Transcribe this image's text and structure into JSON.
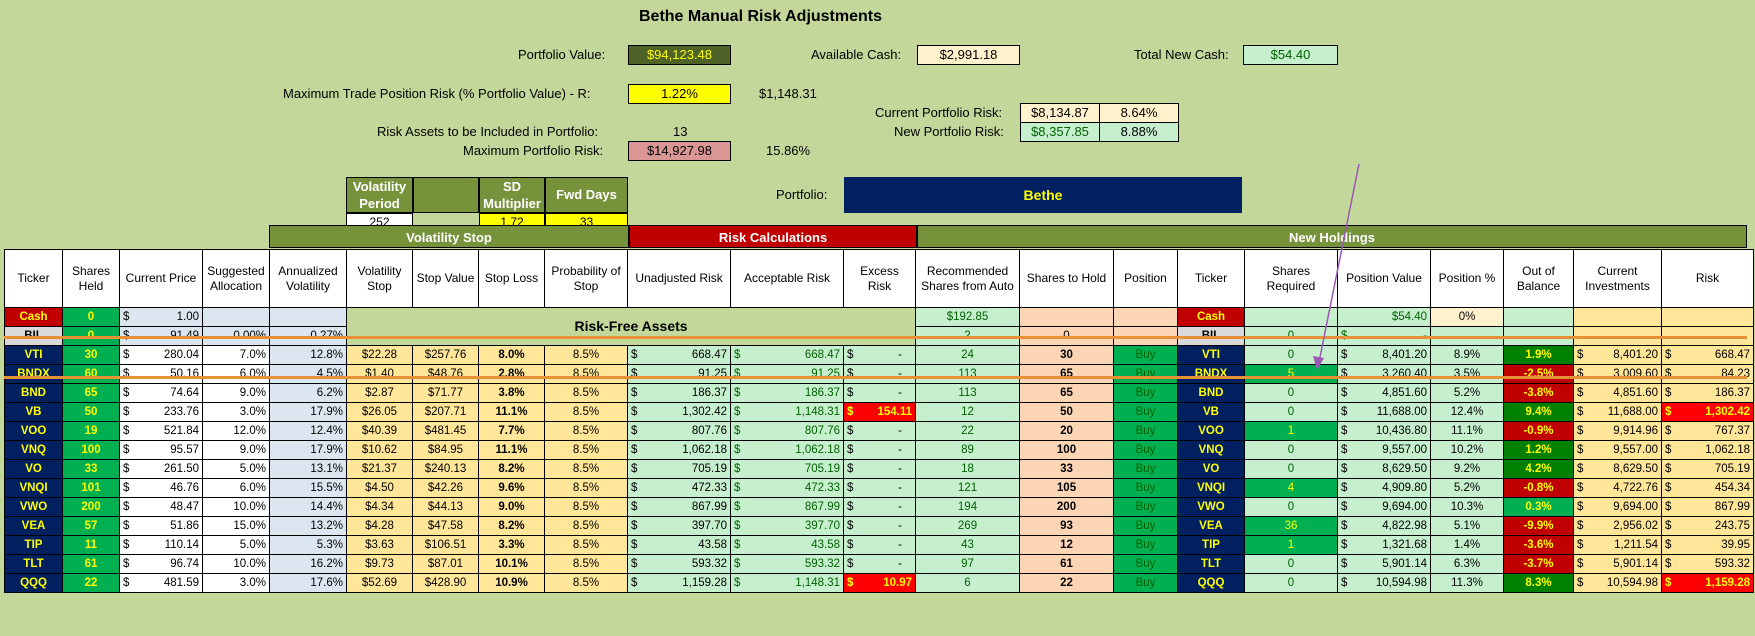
{
  "title": "Bethe Manual Risk Adjustments",
  "summary": {
    "portfolio_value_label": "Portfolio Value:",
    "portfolio_value": "$94,123.48",
    "available_cash_label": "Available Cash:",
    "available_cash": "$2,991.18",
    "total_new_cash_label": "Total New Cash:",
    "total_new_cash": "$54.40",
    "max_trade_risk_label": "Maximum Trade Position Risk (% Portfolio Value) - R:",
    "max_trade_risk_pct": "1.22%",
    "max_trade_risk_value": "$1,148.31",
    "current_risk_label": "Current Portfolio Risk:",
    "current_risk_value": "$8,134.87",
    "current_risk_pct": "8.64%",
    "new_risk_label": "New Portfolio Risk:",
    "new_risk_value": "$8,357.85",
    "new_risk_pct": "8.88%",
    "risk_assets_label": "Risk Assets to be Included in Portfolio:",
    "risk_assets_count": "13",
    "max_portfolio_risk_label": "Maximum Portfolio Risk:",
    "max_portfolio_risk_value": "$14,927.98",
    "max_portfolio_risk_pct": "15.86%",
    "portfolio_label": "Portfolio:",
    "portfolio_name": "Bethe"
  },
  "params": {
    "vol_period_label": "Volatility Period",
    "sd_mult_label": "SD Multiplier",
    "fwd_days_label": "Fwd Days",
    "vol_period": "252",
    "sd_mult": "1.72",
    "fwd_days": "33"
  },
  "sections": {
    "vol_stop": "Volatility Stop",
    "risk_calc": "Risk Calculations",
    "new_holdings": "New Holdings"
  },
  "headers": [
    "Ticker",
    "Shares Held",
    "Current Price",
    "Suggested Allocation",
    "Annualized Volatility",
    "Volatility Stop",
    "Stop Value",
    "Stop Loss",
    "Probability of Stop",
    "Unadjusted Risk",
    "Acceptable Risk",
    "Excess Risk",
    "Recommended Shares from Auto",
    "Shares to Hold",
    "Position",
    "Ticker",
    "Shares Required",
    "Position Value",
    "Position %",
    "Out of Balance",
    "Current Investments",
    "Risk"
  ],
  "risk_free_label": "Risk-Free Assets",
  "cash_row": {
    "ticker": "Cash",
    "held": "0",
    "price": "1.00",
    "rec": "$192.85",
    "ticker2": "Cash",
    "pos_value": "$54.40",
    "pos_pct": "0%"
  },
  "bil_row": {
    "ticker": "BIL",
    "held": "0",
    "price": "91.49",
    "alloc": "0.00%",
    "vol": "0.27%",
    "rec": "2",
    "hold": "0",
    "ticker2": "BIL",
    "req": "0",
    "pos_value": "-"
  },
  "rows": [
    {
      "t": "VTI",
      "h": "30",
      "p": "280.04",
      "a": "7.0%",
      "v": "12.8%",
      "vs": "$22.28",
      "sv": "$257.76",
      "sl": "8.0%",
      "ps": "8.5%",
      "ur": "668.47",
      "ar": "668.47",
      "er": "-",
      "rec": "24",
      "hold": "30",
      "pos": "Buy",
      "req": "0",
      "pv": "8,401.20",
      "pp": "8.9%",
      "ob": "1.9%",
      "ci": "8,401.20",
      "risk": "668.47"
    },
    {
      "t": "BNDX",
      "h": "60",
      "p": "50.16",
      "a": "6.0%",
      "v": "4.5%",
      "vs": "$1.40",
      "sv": "$48.76",
      "sl": "2.8%",
      "ps": "8.5%",
      "ur": "91.25",
      "ar": "91.25",
      "er": "-",
      "rec": "113",
      "hold": "65",
      "pos": "Buy",
      "req": "5",
      "pv": "3,260.40",
      "pp": "3.5%",
      "ob": "-2.5%",
      "ci": "3,009.60",
      "risk": "84.23"
    },
    {
      "t": "BND",
      "h": "65",
      "p": "74.64",
      "a": "9.0%",
      "v": "6.2%",
      "vs": "$2.87",
      "sv": "$71.77",
      "sl": "3.8%",
      "ps": "8.5%",
      "ur": "186.37",
      "ar": "186.37",
      "er": "-",
      "rec": "113",
      "hold": "65",
      "pos": "Buy",
      "req": "0",
      "pv": "4,851.60",
      "pp": "5.2%",
      "ob": "-3.8%",
      "ci": "4,851.60",
      "risk": "186.37"
    },
    {
      "t": "VB",
      "h": "50",
      "p": "233.76",
      "a": "3.0%",
      "v": "17.9%",
      "vs": "$26.05",
      "sv": "$207.71",
      "sl": "11.1%",
      "ps": "8.5%",
      "ur": "1,302.42",
      "ar": "1,148.31",
      "er": "154.11",
      "rec": "12",
      "hold": "50",
      "pos": "Buy",
      "req": "0",
      "pv": "11,688.00",
      "pp": "12.4%",
      "ob": "9.4%",
      "ci": "11,688.00",
      "risk": "1,302.42"
    },
    {
      "t": "VOO",
      "h": "19",
      "p": "521.84",
      "a": "12.0%",
      "v": "12.4%",
      "vs": "$40.39",
      "sv": "$481.45",
      "sl": "7.7%",
      "ps": "8.5%",
      "ur": "807.76",
      "ar": "807.76",
      "er": "-",
      "rec": "22",
      "hold": "20",
      "pos": "Buy",
      "req": "1",
      "pv": "10,436.80",
      "pp": "11.1%",
      "ob": "-0.9%",
      "ci": "9,914.96",
      "risk": "767.37"
    },
    {
      "t": "VNQ",
      "h": "100",
      "p": "95.57",
      "a": "9.0%",
      "v": "17.9%",
      "vs": "$10.62",
      "sv": "$84.95",
      "sl": "11.1%",
      "ps": "8.5%",
      "ur": "1,062.18",
      "ar": "1,062.18",
      "er": "-",
      "rec": "89",
      "hold": "100",
      "pos": "Buy",
      "req": "0",
      "pv": "9,557.00",
      "pp": "10.2%",
      "ob": "1.2%",
      "ci": "9,557.00",
      "risk": "1,062.18"
    },
    {
      "t": "VO",
      "h": "33",
      "p": "261.50",
      "a": "5.0%",
      "v": "13.1%",
      "vs": "$21.37",
      "sv": "$240.13",
      "sl": "8.2%",
      "ps": "8.5%",
      "ur": "705.19",
      "ar": "705.19",
      "er": "-",
      "rec": "18",
      "hold": "33",
      "pos": "Buy",
      "req": "0",
      "pv": "8,629.50",
      "pp": "9.2%",
      "ob": "4.2%",
      "ci": "8,629.50",
      "risk": "705.19"
    },
    {
      "t": "VNQI",
      "h": "101",
      "p": "46.76",
      "a": "6.0%",
      "v": "15.5%",
      "vs": "$4.50",
      "sv": "$42.26",
      "sl": "9.6%",
      "ps": "8.5%",
      "ur": "472.33",
      "ar": "472.33",
      "er": "-",
      "rec": "121",
      "hold": "105",
      "pos": "Buy",
      "req": "4",
      "pv": "4,909.80",
      "pp": "5.2%",
      "ob": "-0.8%",
      "ci": "4,722.76",
      "risk": "454.34"
    },
    {
      "t": "VWO",
      "h": "200",
      "p": "48.47",
      "a": "10.0%",
      "v": "14.4%",
      "vs": "$4.34",
      "sv": "$44.13",
      "sl": "9.0%",
      "ps": "8.5%",
      "ur": "867.99",
      "ar": "867.99",
      "er": "-",
      "rec": "194",
      "hold": "200",
      "pos": "Buy",
      "req": "0",
      "pv": "9,694.00",
      "pp": "10.3%",
      "ob": "0.3%",
      "ci": "9,694.00",
      "risk": "867.99"
    },
    {
      "t": "VEA",
      "h": "57",
      "p": "51.86",
      "a": "15.0%",
      "v": "13.2%",
      "vs": "$4.28",
      "sv": "$47.58",
      "sl": "8.2%",
      "ps": "8.5%",
      "ur": "397.70",
      "ar": "397.70",
      "er": "-",
      "rec": "269",
      "hold": "93",
      "pos": "Buy",
      "req": "36",
      "pv": "4,822.98",
      "pp": "5.1%",
      "ob": "-9.9%",
      "ci": "2,956.02",
      "risk": "243.75"
    },
    {
      "t": "TIP",
      "h": "11",
      "p": "110.14",
      "a": "5.0%",
      "v": "5.3%",
      "vs": "$3.63",
      "sv": "$106.51",
      "sl": "3.3%",
      "ps": "8.5%",
      "ur": "43.58",
      "ar": "43.58",
      "er": "-",
      "rec": "43",
      "hold": "12",
      "pos": "Buy",
      "req": "1",
      "pv": "1,321.68",
      "pp": "1.4%",
      "ob": "-3.6%",
      "ci": "1,211.54",
      "risk": "39.95"
    },
    {
      "t": "TLT",
      "h": "61",
      "p": "96.74",
      "a": "10.0%",
      "v": "16.2%",
      "vs": "$9.73",
      "sv": "$87.01",
      "sl": "10.1%",
      "ps": "8.5%",
      "ur": "593.32",
      "ar": "593.32",
      "er": "-",
      "rec": "97",
      "hold": "61",
      "pos": "Buy",
      "req": "0",
      "pv": "5,901.14",
      "pp": "6.3%",
      "ob": "-3.7%",
      "ci": "5,901.14",
      "risk": "593.32"
    },
    {
      "t": "QQQ",
      "h": "22",
      "p": "481.59",
      "a": "3.0%",
      "v": "17.6%",
      "vs": "$52.69",
      "sv": "$428.90",
      "sl": "10.9%",
      "ps": "8.5%",
      "ur": "1,159.28",
      "ar": "1,148.31",
      "er": "10.97",
      "rec": "6",
      "hold": "22",
      "pos": "Buy",
      "req": "0",
      "pv": "10,594.98",
      "pp": "11.3%",
      "ob": "8.3%",
      "ci": "10,594.98",
      "risk": "1,159.28"
    }
  ],
  "colors": {
    "ticker_bg": "#002060",
    "shares_bg": "#00b050",
    "header_green": "#76933c",
    "header_red": "#c00000",
    "portfolio_bg": "#002060",
    "annotation": "#9b59b6"
  }
}
